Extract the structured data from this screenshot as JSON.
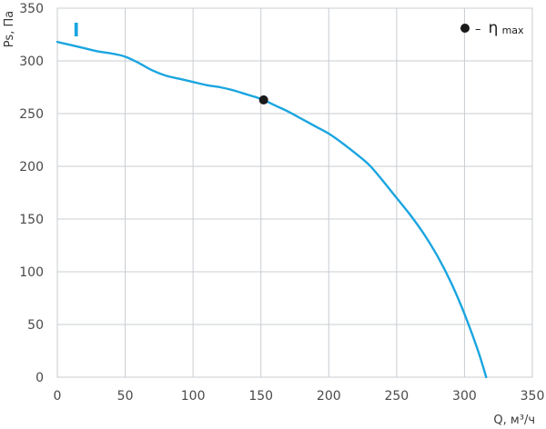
{
  "chart_data": {
    "type": "line",
    "xlabel": "Q, м³/ч",
    "ylabel": "Ps, Па",
    "xlim": [
      0,
      350
    ],
    "ylim": [
      0,
      350
    ],
    "x_ticks": [
      0,
      50,
      100,
      150,
      200,
      250,
      300,
      350
    ],
    "y_ticks": [
      0,
      50,
      100,
      150,
      200,
      250,
      300,
      350
    ],
    "grid": true,
    "curve_label": "I",
    "series": [
      {
        "color": "#1aa5e0",
        "x": [
          0,
          10,
          20,
          30,
          40,
          50,
          60,
          70,
          80,
          90,
          100,
          110,
          120,
          130,
          140,
          150,
          160,
          170,
          180,
          190,
          200,
          210,
          220,
          230,
          240,
          250,
          260,
          270,
          280,
          290,
          300,
          310,
          316
        ],
        "y": [
          318,
          315,
          312,
          309,
          307,
          304,
          298,
          291,
          286,
          283,
          280,
          277,
          275,
          272,
          268,
          264,
          258,
          252,
          245,
          238,
          231,
          222,
          212,
          201,
          186,
          170,
          154,
          136,
          115,
          90,
          60,
          25,
          0
        ]
      }
    ],
    "markers": [
      {
        "x": 152,
        "y": 263,
        "color": "#1a1a1a"
      }
    ],
    "legend": {
      "position": "top-right",
      "marker_color": "#1a1a1a",
      "text_prefix": "–",
      "symbol": "η",
      "subscript": "max"
    }
  }
}
